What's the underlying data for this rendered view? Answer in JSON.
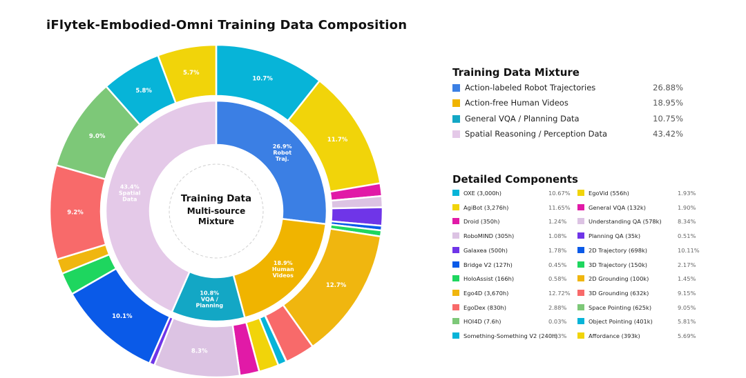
{
  "title": "iFlytek-Embodied-Omni Training Data Composition",
  "center": {
    "line1": "Training Data",
    "line2": "Multi-source",
    "line3": "Mixture"
  },
  "mixture_title": "Training Data Mixture",
  "details_title": "Detailed Components",
  "chart_data": {
    "type": "pie",
    "title": "iFlytek-Embodied-Omni Training Data Composition",
    "inner": [
      {
        "name": "Action-labeled Robot Trajectories",
        "value": 26.88,
        "color": "#3b7fe4",
        "label": [
          "26.9%",
          "Robot",
          "Traj."
        ]
      },
      {
        "name": "Action-free Human Videos",
        "value": 18.95,
        "color": "#f0b400",
        "label": [
          "18.9%",
          "Human",
          "Videos"
        ]
      },
      {
        "name": "General VQA / Planning Data",
        "value": 10.75,
        "color": "#13a7c5",
        "label": [
          "10.8%",
          "VQA /",
          "Planning"
        ]
      },
      {
        "name": "Spatial Reasoning / Perception Data",
        "value": 43.42,
        "color": "#e4c9e8",
        "label": [
          "43.4%",
          "Spatial",
          "Data"
        ]
      }
    ],
    "outer": [
      {
        "name": "OXE (3,000h)",
        "value": 10.67,
        "color": "#07b4d8",
        "label": "10.7%"
      },
      {
        "name": "AgiBot (3,276h)",
        "value": 11.65,
        "color": "#f1d40a",
        "label": "11.7%"
      },
      {
        "name": "Droid (350h)",
        "value": 1.24,
        "color": "#e11aa7",
        "label": ""
      },
      {
        "name": "RoboMIND (305h)",
        "value": 1.08,
        "color": "#dcc3e3",
        "label": ""
      },
      {
        "name": "Galaxea (500h)",
        "value": 1.78,
        "color": "#6f35e8",
        "label": ""
      },
      {
        "name": "Bridge V2 (127h)",
        "value": 0.45,
        "color": "#0a5ae8",
        "label": ""
      },
      {
        "name": "HoloAssist (166h)",
        "value": 0.58,
        "color": "#1ed65f",
        "label": ""
      },
      {
        "name": "Ego4D (3,670h)",
        "value": 12.72,
        "color": "#f0b60f",
        "label": "12.7%"
      },
      {
        "name": "EgoDex (830h)",
        "value": 2.88,
        "color": "#f86a6a",
        "label": ""
      },
      {
        "name": "HOI4D (7.6h)",
        "value": 0.03,
        "color": "#7dc878",
        "label": ""
      },
      {
        "name": "Something-Something V2 (240h)",
        "value": 0.83,
        "color": "#07b4d8",
        "label": ""
      },
      {
        "name": "EgoVid (556h)",
        "value": 1.93,
        "color": "#f1d40a",
        "label": ""
      },
      {
        "name": "General VQA (132k)",
        "value": 1.9,
        "color": "#e11aa7",
        "label": ""
      },
      {
        "name": "Understanding QA (578k)",
        "value": 8.34,
        "color": "#dcc3e3",
        "label": "8.3%"
      },
      {
        "name": "Planning QA (35k)",
        "value": 0.51,
        "color": "#6f35e8",
        "label": ""
      },
      {
        "name": "2D Trajectory (698k)",
        "value": 10.11,
        "color": "#0a5ae8",
        "label": "10.1%"
      },
      {
        "name": "3D Trajectory (150k)",
        "value": 2.17,
        "color": "#1ed65f",
        "label": ""
      },
      {
        "name": "2D Grounding (100k)",
        "value": 1.45,
        "color": "#f0b60f",
        "label": ""
      },
      {
        "name": "3D Grounding (632k)",
        "value": 9.15,
        "color": "#f86a6a",
        "label": "9.2%"
      },
      {
        "name": "Space Pointing (625k)",
        "value": 9.05,
        "color": "#7dc878",
        "label": "9.0%"
      },
      {
        "name": "Object Pointing (401k)",
        "value": 5.81,
        "color": "#07b4d8",
        "label": "5.8%"
      },
      {
        "name": "Affordance (393k)",
        "value": 5.69,
        "color": "#f1d40a",
        "label": "5.7%"
      }
    ]
  },
  "mixture": [
    {
      "label": "Action-labeled Robot Trajectories",
      "value": "26.88%",
      "color": "#3b7fe4"
    },
    {
      "label": "Action-free Human Videos",
      "value": "18.95%",
      "color": "#f0b400"
    },
    {
      "label": "General VQA / Planning Data",
      "value": "10.75%",
      "color": "#13a7c5"
    },
    {
      "label": "Spatial Reasoning / Perception Data",
      "value": "43.42%",
      "color": "#e4c9e8"
    }
  ],
  "details": [
    {
      "label": "OXE (3,000h)",
      "value": "10.67%",
      "color": "#07b4d8"
    },
    {
      "label": "AgiBot (3,276h)",
      "value": "11.65%",
      "color": "#f1d40a"
    },
    {
      "label": "Droid (350h)",
      "value": "1.24%",
      "color": "#e11aa7"
    },
    {
      "label": "RoboMIND (305h)",
      "value": "1.08%",
      "color": "#dcc3e3"
    },
    {
      "label": "Galaxea (500h)",
      "value": "1.78%",
      "color": "#6f35e8"
    },
    {
      "label": "Bridge V2 (127h)",
      "value": "0.45%",
      "color": "#0a5ae8"
    },
    {
      "label": "HoloAssist (166h)",
      "value": "0.58%",
      "color": "#1ed65f"
    },
    {
      "label": "Ego4D (3,670h)",
      "value": "12.72%",
      "color": "#f0b60f"
    },
    {
      "label": "EgoDex (830h)",
      "value": "2.88%",
      "color": "#f86a6a"
    },
    {
      "label": "HOI4D (7.6h)",
      "value": "0.03%",
      "color": "#7dc878"
    },
    {
      "label": "Something-Something V2 (240h)",
      "value": "0.83%",
      "color": "#07b4d8"
    },
    {
      "label": "EgoVid (556h)",
      "value": "1.93%",
      "color": "#f1d40a"
    },
    {
      "label": "General VQA (132k)",
      "value": "1.90%",
      "color": "#e11aa7"
    },
    {
      "label": "Understanding QA (578k)",
      "value": "8.34%",
      "color": "#dcc3e3"
    },
    {
      "label": "Planning QA (35k)",
      "value": "0.51%",
      "color": "#6f35e8"
    },
    {
      "label": "2D Trajectory (698k)",
      "value": "10.11%",
      "color": "#0a5ae8"
    },
    {
      "label": "3D Trajectory (150k)",
      "value": "2.17%",
      "color": "#1ed65f"
    },
    {
      "label": "2D Grounding (100k)",
      "value": "1.45%",
      "color": "#f0b60f"
    },
    {
      "label": "3D Grounding (632k)",
      "value": "9.15%",
      "color": "#f86a6a"
    },
    {
      "label": "Space Pointing (625k)",
      "value": "9.05%",
      "color": "#7dc878"
    },
    {
      "label": "Object Pointing (401k)",
      "value": "5.81%",
      "color": "#07b4d8"
    },
    {
      "label": "Affordance (393k)",
      "value": "5.69%",
      "color": "#f1d40a"
    }
  ]
}
